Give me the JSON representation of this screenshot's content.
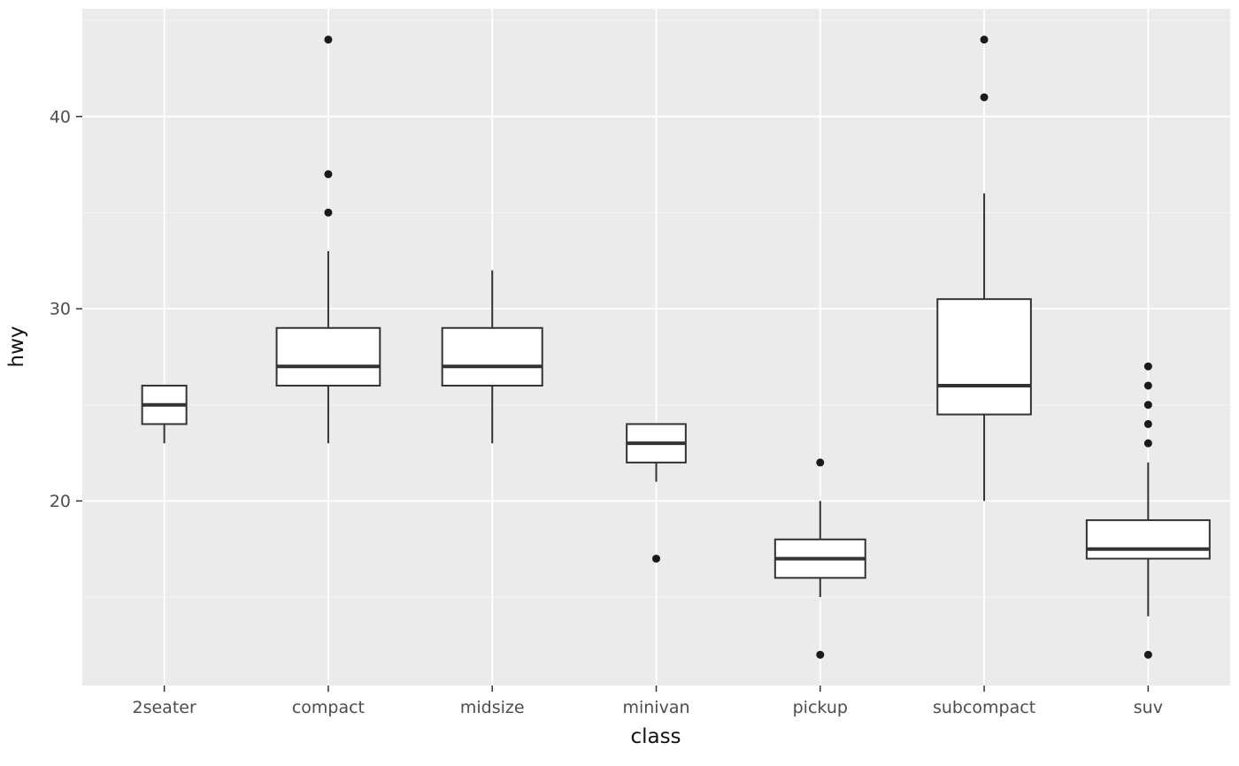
{
  "chart_data": {
    "type": "boxplot",
    "title": "",
    "xlabel": "class",
    "ylabel": "hwy",
    "ylim": [
      10.4,
      45.6
    ],
    "yticks_major": [
      20,
      30,
      40
    ],
    "yticks_minor": [
      15,
      25,
      35,
      45
    ],
    "categories": [
      "2seater",
      "compact",
      "midsize",
      "minivan",
      "pickup",
      "subcompact",
      "suv"
    ],
    "series": [
      {
        "category": "2seater",
        "whisker_low": 23,
        "q1": 24,
        "median": 25,
        "q3": 26,
        "whisker_high": 26,
        "outliers": [],
        "box_width_frac": 0.27
      },
      {
        "category": "compact",
        "whisker_low": 23,
        "q1": 26,
        "median": 27,
        "q3": 29,
        "whisker_high": 33,
        "outliers": [
          35,
          37,
          44
        ],
        "box_width_frac": 0.63
      },
      {
        "category": "midsize",
        "whisker_low": 23,
        "q1": 26,
        "median": 27,
        "q3": 29,
        "whisker_high": 32,
        "outliers": [],
        "box_width_frac": 0.61
      },
      {
        "category": "minivan",
        "whisker_low": 21,
        "q1": 22,
        "median": 23,
        "q3": 24,
        "whisker_high": 24,
        "outliers": [
          17
        ],
        "box_width_frac": 0.36
      },
      {
        "category": "pickup",
        "whisker_low": 15,
        "q1": 16,
        "median": 17,
        "q3": 18,
        "whisker_high": 20,
        "outliers": [
          12,
          22
        ],
        "box_width_frac": 0.55
      },
      {
        "category": "subcompact",
        "whisker_low": 20,
        "q1": 24.5,
        "median": 26,
        "q3": 30.5,
        "whisker_high": 36,
        "outliers": [
          41,
          44
        ],
        "box_width_frac": 0.57
      },
      {
        "category": "suv",
        "whisker_low": 14,
        "q1": 17,
        "median": 17.5,
        "q3": 19,
        "whisker_high": 22,
        "outliers": [
          12,
          23,
          24,
          25,
          26,
          27
        ],
        "box_width_frac": 0.75
      }
    ],
    "grid": "on",
    "legend": "none",
    "colors": {
      "panel_bg": "#ebebeb",
      "grid_major": "#ffffff",
      "grid_minor": "#f5f5f5",
      "box_stroke": "#333333",
      "box_fill": "#ffffff",
      "outlier": "#1a1a1a",
      "tick_mark": "#333333",
      "tick_label": "#4d4d4d",
      "axis_title": "#111111"
    }
  }
}
